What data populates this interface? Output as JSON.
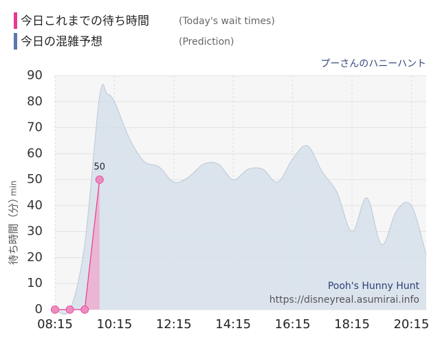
{
  "chart_data": {
    "type": "area",
    "legend_title": "今日これまでの待ち時間",
    "legend_title_en": "(Today's wait times)",
    "attraction": "プーさんのハニーハント",
    "watermark_name": "Pooh's Hunny Hunt",
    "watermark_url": "https://disneyreal.asumirai.info",
    "y_label": "待ち時間（分）",
    "y_unit": "min",
    "xlim": [
      "08:15",
      "20:45"
    ],
    "xticks": [
      "08:15",
      "10:15",
      "12:15",
      "14:15",
      "16:15",
      "18:15",
      "20:15"
    ],
    "ylim": [
      0,
      90
    ],
    "yticks": [
      0,
      10,
      20,
      30,
      40,
      50,
      60,
      70,
      80,
      90
    ],
    "grid": true,
    "series": [
      {
        "name": "今日の混雑予想",
        "note_en": "(Prediction)",
        "color": "#5a78a8",
        "fill": "#d5e0ea",
        "x": [
          "08:15",
          "08:45",
          "09:15",
          "09:45",
          "10:00",
          "10:15",
          "10:45",
          "11:15",
          "11:45",
          "12:15",
          "12:45",
          "13:15",
          "13:45",
          "14:15",
          "14:45",
          "15:15",
          "15:45",
          "16:15",
          "16:45",
          "17:15",
          "17:45",
          "18:15",
          "18:45",
          "19:15",
          "19:45",
          "20:15",
          "20:45"
        ],
        "values": [
          0,
          0,
          25,
          82,
          83,
          80,
          66,
          57,
          55,
          49,
          51,
          56,
          56,
          50,
          54,
          54,
          49,
          58,
          63,
          53,
          45,
          30,
          43,
          25,
          38,
          40,
          21
        ]
      },
      {
        "name": "今日これまでの待ち時間",
        "note_en": "(Today's wait times)",
        "color": "#e8388f",
        "fill": "#eeaacd",
        "x": [
          "08:15",
          "08:45",
          "09:15",
          "09:45"
        ],
        "values": [
          0,
          0,
          0,
          50
        ],
        "value_labels": [
          null,
          null,
          null,
          "50"
        ]
      }
    ]
  }
}
